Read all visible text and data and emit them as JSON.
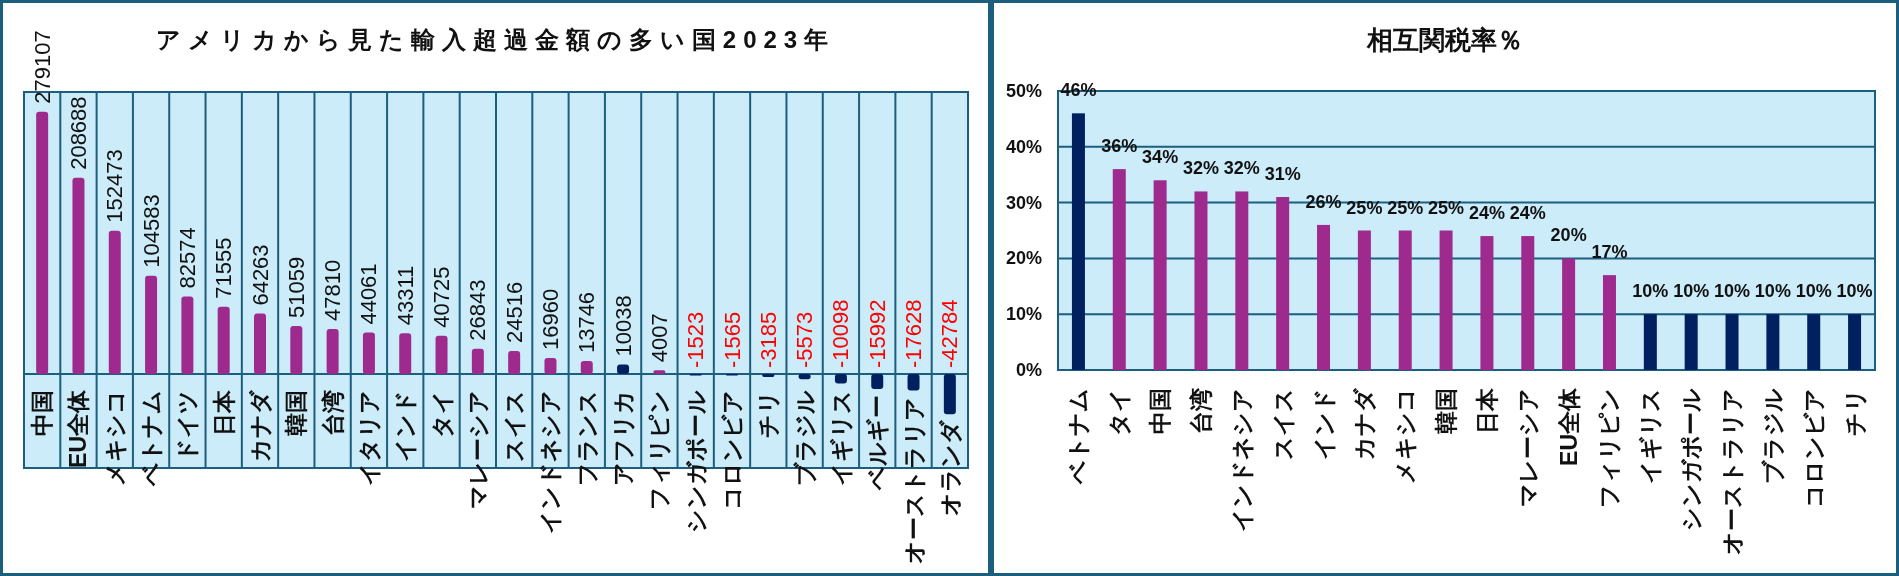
{
  "chart_data": [
    {
      "type": "bar",
      "title": "アメリカから見た輸入超過金額の多い国2023年",
      "categories": [
        "中国",
        "EU全体",
        "メキシコ",
        "ベトナム",
        "ドイツ",
        "日本",
        "カナダ",
        "韓国",
        "台湾",
        "イタリア",
        "インド",
        "タイ",
        "マレーシア",
        "スイス",
        "インドネシア",
        "フランス",
        "アフリカ",
        "フィリピン",
        "シンガポール",
        "コロンビア",
        "チリ",
        "ブラジル",
        "イギリス",
        "ベルギー",
        "オーストラリア",
        "オランダ"
      ],
      "values": [
        279107,
        208688,
        152473,
        104583,
        82574,
        71555,
        64263,
        51059,
        47810,
        44061,
        43311,
        40725,
        26843,
        24516,
        16960,
        13746,
        10038,
        4007,
        -1523,
        -1565,
        -3185,
        -5573,
        -10098,
        -15992,
        -17628,
        -42784
      ],
      "colors": [
        "#9e2a8e",
        "#9e2a8e",
        "#9e2a8e",
        "#9e2a8e",
        "#9e2a8e",
        "#9e2a8e",
        "#9e2a8e",
        "#9e2a8e",
        "#9e2a8e",
        "#9e2a8e",
        "#9e2a8e",
        "#9e2a8e",
        "#9e2a8e",
        "#9e2a8e",
        "#9e2a8e",
        "#9e2a8e",
        "#002060",
        "#9e2a8e",
        "#002060",
        "#002060",
        "#002060",
        "#002060",
        "#002060",
        "#002060",
        "#002060",
        "#002060"
      ],
      "data_labels": true,
      "ylim": [
        -100000,
        300000
      ],
      "grid": "x",
      "tick_labels": "x"
    },
    {
      "type": "bar",
      "title": "相互関税率％",
      "categories": [
        "ベトナム",
        "タイ",
        "中国",
        "台湾",
        "インドネシア",
        "スイス",
        "インド",
        "カナダ",
        "メキシコ",
        "韓国",
        "日本",
        "マレーシア",
        "EU全体",
        "フィリピン",
        "イギリス",
        "シンガポール",
        "オーストラリア",
        "ブラジル",
        "コロンビア",
        "チリ"
      ],
      "values": [
        46,
        36,
        34,
        32,
        32,
        31,
        26,
        25,
        25,
        25,
        24,
        24,
        20,
        17,
        10,
        10,
        10,
        10,
        10,
        10
      ],
      "colors": [
        "#002060",
        "#9e2a8e",
        "#9e2a8e",
        "#9e2a8e",
        "#9e2a8e",
        "#9e2a8e",
        "#9e2a8e",
        "#9e2a8e",
        "#9e2a8e",
        "#9e2a8e",
        "#9e2a8e",
        "#9e2a8e",
        "#9e2a8e",
        "#9e2a8e",
        "#002060",
        "#002060",
        "#002060",
        "#002060",
        "#002060",
        "#002060"
      ],
      "value_labels": [
        "46%",
        "36%",
        "34%",
        "32%",
        "32%",
        "31%",
        "26%",
        "25%",
        "25%",
        "25%",
        "24%",
        "24%",
        "20%",
        "17%",
        "10%",
        "10%",
        "10%",
        "10%",
        "10%",
        "10%"
      ],
      "ylim": [
        0,
        50
      ],
      "yticks": [
        {
          "value": 0,
          "label": "0%"
        },
        {
          "value": 10,
          "label": "10%"
        },
        {
          "value": 20,
          "label": "20%"
        },
        {
          "value": 30,
          "label": "30%"
        },
        {
          "value": 40,
          "label": "40%"
        },
        {
          "value": 50,
          "label": "50%"
        }
      ],
      "grid": "y"
    }
  ]
}
